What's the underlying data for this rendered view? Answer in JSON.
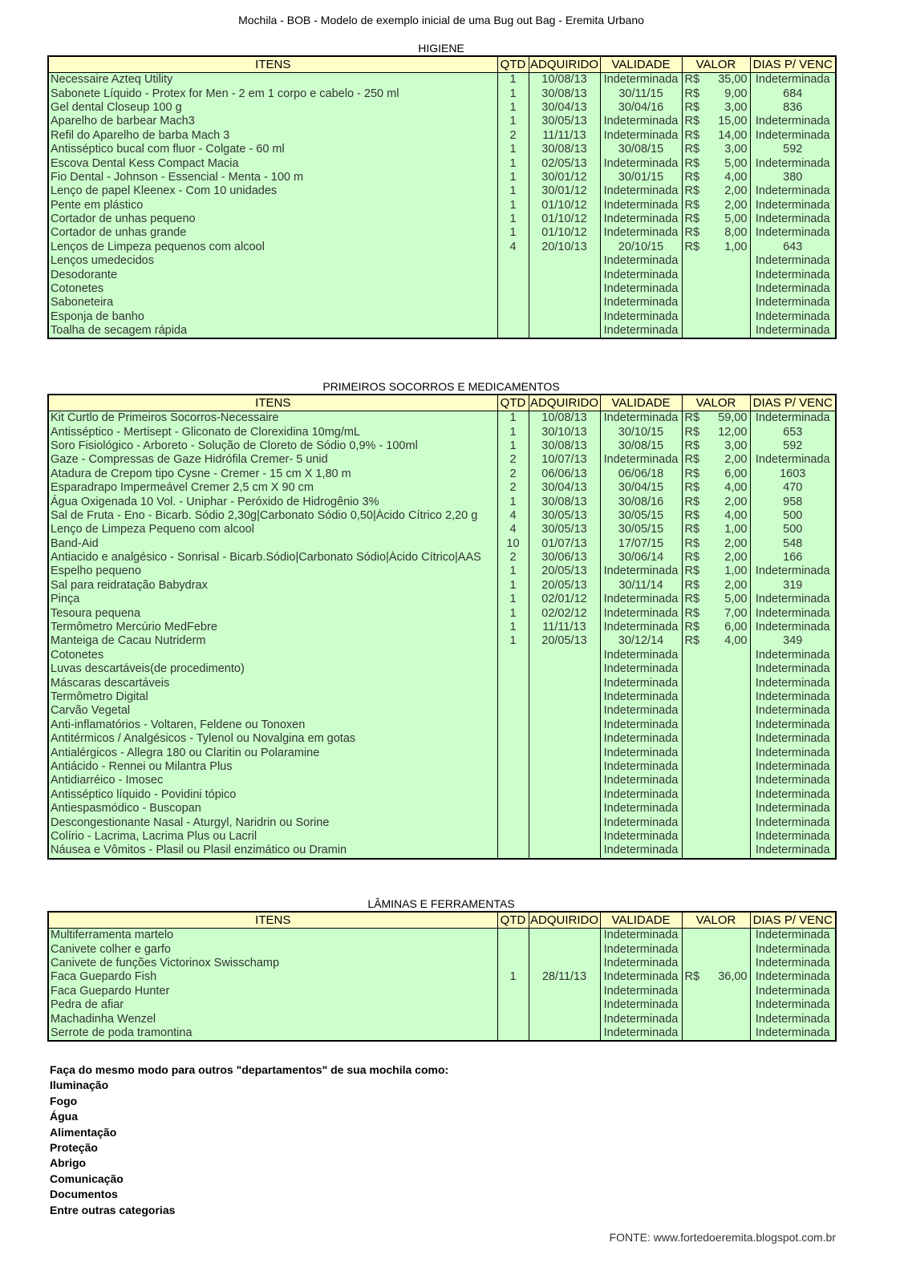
{
  "title": "Mochila - BOB  - Modelo de exemplo inicial de uma Bug out Bag - Eremita Urbano",
  "headers": [
    "ITENS",
    "QTD",
    "ADQUIRIDO",
    "VALIDADE",
    "VALOR",
    "DIAS P/ VENC"
  ],
  "colors": {
    "header_bg": "#fffdc8",
    "row_bg": "#ccffcc"
  },
  "sections": [
    {
      "title": "HIGIENE",
      "rows": [
        [
          "Necessaire Azteq Utility",
          "1",
          "10/08/13",
          "Indeterminada",
          "R$",
          "35,00",
          "Indeterminada"
        ],
        [
          "Sabonete Líquido - Protex for Men - 2 em 1 corpo e cabelo - 250 ml",
          "1",
          "30/08/13",
          "30/11/15",
          "R$",
          "9,00",
          "684"
        ],
        [
          "Gel dental Closeup 100 g",
          "1",
          "30/04/13",
          "30/04/16",
          "R$",
          "3,00",
          "836"
        ],
        [
          "Aparelho de barbear Mach3",
          "1",
          "30/05/13",
          "Indeterminada",
          "R$",
          "15,00",
          "Indeterminada"
        ],
        [
          "Refil do Aparelho de barba Mach 3",
          "2",
          "11/11/13",
          "Indeterminada",
          "R$",
          "14,00",
          "Indeterminada"
        ],
        [
          "Antisséptico bucal com fluor - Colgate - 60 ml",
          "1",
          "30/08/13",
          "30/08/15",
          "R$",
          "3,00",
          "592"
        ],
        [
          "Escova Dental Kess Compact Macia",
          "1",
          "02/05/13",
          "Indeterminada",
          "R$",
          "5,00",
          "Indeterminada"
        ],
        [
          "Fio Dental - Johnson - Essencial - Menta - 100 m",
          "1",
          "30/01/12",
          "30/01/15",
          "R$",
          "4,00",
          "380"
        ],
        [
          "Lenço de papel Kleenex - Com 10 unidades",
          "1",
          "30/01/12",
          "Indeterminada",
          "R$",
          "2,00",
          "Indeterminada"
        ],
        [
          "Pente em plástico",
          "1",
          "01/10/12",
          "Indeterminada",
          "R$",
          "2,00",
          "Indeterminada"
        ],
        [
          "Cortador de unhas pequeno",
          "1",
          "01/10/12",
          "Indeterminada",
          "R$",
          "5,00",
          "Indeterminada"
        ],
        [
          "Cortador de unhas grande",
          "1",
          "01/10/12",
          "Indeterminada",
          "R$",
          "8,00",
          "Indeterminada"
        ],
        [
          "Lenços de Limpeza pequenos com alcool",
          "4",
          "20/10/13",
          "20/10/15",
          "R$",
          "1,00",
          "643"
        ],
        [
          "Lenços umedecidos",
          "",
          "",
          "Indeterminada",
          "",
          "",
          "Indeterminada"
        ],
        [
          "Desodorante",
          "",
          "",
          "Indeterminada",
          "",
          "",
          "Indeterminada"
        ],
        [
          "Cotonetes",
          "",
          "",
          "Indeterminada",
          "",
          "",
          "Indeterminada"
        ],
        [
          "Saboneteira",
          "",
          "",
          "Indeterminada",
          "",
          "",
          "Indeterminada"
        ],
        [
          "Esponja de banho",
          "",
          "",
          "Indeterminada",
          "",
          "",
          "Indeterminada"
        ],
        [
          "Toalha de secagem rápida",
          "",
          "",
          "Indeterminada",
          "",
          "",
          "Indeterminada"
        ]
      ]
    },
    {
      "title": "PRIMEIROS SOCORROS E MEDICAMENTOS",
      "rows": [
        [
          "Kit Curtlo de Primeiros Socorros-Necessaire",
          "1",
          "10/08/13",
          "Indeterminada",
          "R$",
          "59,00",
          "Indeterminada"
        ],
        [
          "Antisséptico - Mertisept - Gliconato de Clorexidina 10mg/mL",
          "1",
          "30/10/13",
          "30/10/15",
          "R$",
          "12,00",
          "653"
        ],
        [
          "Soro Fisiológico - Arboreto - Solução de Cloreto de Sódio 0,9% - 100ml",
          "1",
          "30/08/13",
          "30/08/15",
          "R$",
          "3,00",
          "592"
        ],
        [
          "Gaze - Compressas de Gaze Hidrófila Cremer- 5 unid",
          "2",
          "10/07/13",
          "Indeterminada",
          "R$",
          "2,00",
          "Indeterminada"
        ],
        [
          "Atadura de Crepom tipo Cysne - Cremer - 15 cm X 1,80 m",
          "2",
          "06/06/13",
          "06/06/18",
          "R$",
          "6,00",
          "1603"
        ],
        [
          "Esparadrapo Impermeável Cremer 2,5 cm X 90 cm",
          "2",
          "30/04/13",
          "30/04/15",
          "R$",
          "4,00",
          "470"
        ],
        [
          "Água Oxigenada 10 Vol. - Uniphar -  Peróxido de Hidrogênio 3%",
          "1",
          "30/08/13",
          "30/08/16",
          "R$",
          "2,00",
          "958"
        ],
        [
          "Sal de Fruta - Eno - Bicarb. Sódio 2,30g|Carbonato Sódio 0,50|Ácido Cítrico 2,20 g",
          "4",
          "30/05/13",
          "30/05/15",
          "R$",
          "4,00",
          "500"
        ],
        [
          "Lenço de Limpeza Pequeno com alcool",
          "4",
          "30/05/13",
          "30/05/15",
          "R$",
          "1,00",
          "500"
        ],
        [
          "Band-Aid",
          "10",
          "01/07/13",
          "17/07/15",
          "R$",
          "2,00",
          "548"
        ],
        [
          "Antiacido e analgésico - Sonrisal - Bicarb.Sódio|Carbonato Sódio|Ácido Cítrico|AAS",
          "2",
          "30/06/13",
          "30/06/14",
          "R$",
          "2,00",
          "166"
        ],
        [
          "Espelho pequeno",
          "1",
          "20/05/13",
          "Indeterminada",
          "R$",
          "1,00",
          "Indeterminada"
        ],
        [
          "Sal para reidratação Babydrax",
          "1",
          "20/05/13",
          "30/11/14",
          "R$",
          "2,00",
          "319"
        ],
        [
          "Pinça",
          "1",
          "02/01/12",
          "Indeterminada",
          "R$",
          "5,00",
          "Indeterminada"
        ],
        [
          "Tesoura pequena",
          "1",
          "02/02/12",
          "Indeterminada",
          "R$",
          "7,00",
          "Indeterminada"
        ],
        [
          "Termômetro Mercúrio MedFebre",
          "1",
          "11/11/13",
          "Indeterminada",
          "R$",
          "6,00",
          "Indeterminada"
        ],
        [
          "Manteiga de Cacau Nutriderm",
          "1",
          "20/05/13",
          "30/12/14",
          "R$",
          "4,00",
          "349"
        ],
        [
          "Cotonetes",
          "",
          "",
          "Indeterminada",
          "",
          "",
          "Indeterminada"
        ],
        [
          "Luvas descartáveis(de procedimento)",
          "",
          "",
          "Indeterminada",
          "",
          "",
          "Indeterminada"
        ],
        [
          "Máscaras descartáveis",
          "",
          "",
          "Indeterminada",
          "",
          "",
          "Indeterminada"
        ],
        [
          "Termômetro Digital",
          "",
          "",
          "Indeterminada",
          "",
          "",
          "Indeterminada"
        ],
        [
          "Carvão Vegetal",
          "",
          "",
          "Indeterminada",
          "",
          "",
          "Indeterminada"
        ],
        [
          "Anti-inflamatórios - Voltaren, Feldene ou Tonoxen",
          "",
          "",
          "Indeterminada",
          "",
          "",
          "Indeterminada"
        ],
        [
          "Antitérmicos / Analgésicos - Tylenol ou Novalgina em gotas",
          "",
          "",
          "Indeterminada",
          "",
          "",
          "Indeterminada"
        ],
        [
          "Antialérgicos - Allegra 180 ou Claritin ou Polaramine",
          "",
          "",
          "Indeterminada",
          "",
          "",
          "Indeterminada"
        ],
        [
          "Antiácido - Rennei ou Milantra Plus",
          "",
          "",
          "Indeterminada",
          "",
          "",
          "Indeterminada"
        ],
        [
          "Antidiarréico - Imosec",
          "",
          "",
          "Indeterminada",
          "",
          "",
          "Indeterminada"
        ],
        [
          "Antisséptico líquido - Povidini tópico",
          "",
          "",
          "Indeterminada",
          "",
          "",
          "Indeterminada"
        ],
        [
          "Antiespasmódico - Buscopan",
          "",
          "",
          "Indeterminada",
          "",
          "",
          "Indeterminada"
        ],
        [
          "Descongestionante Nasal - Aturgyl, Naridrin ou Sorine",
          "",
          "",
          "Indeterminada",
          "",
          "",
          "Indeterminada"
        ],
        [
          "Colírio - Lacrima, Lacrima Plus ou Lacril",
          "",
          "",
          "Indeterminada",
          "",
          "",
          "Indeterminada"
        ],
        [
          "Náusea e Vômitos - Plasil ou Plasil enzimático ou Dramin",
          "",
          "",
          "Indeterminada",
          "",
          "",
          "Indeterminada"
        ]
      ]
    },
    {
      "title": "LÂMINAS E FERRAMENTAS",
      "rows": [
        [
          "Multiferramenta martelo",
          "",
          "",
          "Indeterminada",
          "",
          "",
          "Indeterminada"
        ],
        [
          "Canivete colher e garfo",
          "",
          "",
          "Indeterminada",
          "",
          "",
          "Indeterminada"
        ],
        [
          "Canivete de funções Victorinox Swisschamp",
          "",
          "",
          "Indeterminada",
          "",
          "",
          "Indeterminada"
        ],
        [
          "Faca Guepardo Fish",
          "1",
          "28/11/13",
          "Indeterminada",
          "R$",
          "36,00",
          "Indeterminada"
        ],
        [
          "Faca Guepardo Hunter",
          "",
          "",
          "Indeterminada",
          "",
          "",
          "Indeterminada"
        ],
        [
          "Pedra de afiar",
          "",
          "",
          "Indeterminada",
          "",
          "",
          "Indeterminada"
        ],
        [
          "Machadinha Wenzel",
          "",
          "",
          "Indeterminada",
          "",
          "",
          "Indeterminada"
        ],
        [
          "Serrote de poda tramontina",
          "",
          "",
          "Indeterminada",
          "",
          "",
          "Indeterminada"
        ]
      ]
    }
  ],
  "note": {
    "intro": "Faça do mesmo modo para outros \"departamentos\" de sua mochila como:",
    "items": [
      "Iluminação",
      "Fogo",
      "Água",
      "Alimentação",
      "Proteção",
      "Abrigo",
      "Comunicação",
      "Documentos",
      "Entre outras categorias"
    ]
  },
  "source": "FONTE: www.fortedoeremita.blogspot.com.br"
}
